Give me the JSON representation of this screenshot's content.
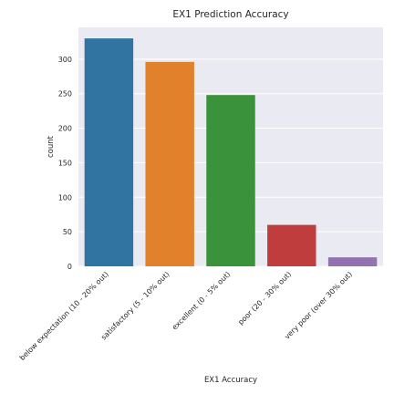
{
  "chart_data": {
    "type": "bar",
    "title": "EX1 Prediction Accuracy",
    "xlabel": "EX1 Accuracy",
    "ylabel": "count",
    "categories": [
      "below expectation (10 - 20% out)",
      "satisfactory (5 - 10% out)",
      "excellent (0 - 5% out)",
      "poor (20 - 30% out)",
      "very poor (over 30% out)"
    ],
    "values": [
      330,
      296,
      248,
      60,
      13
    ],
    "colors": [
      "#3274a1",
      "#e1812c",
      "#3a923a",
      "#c03d3e",
      "#9372b2"
    ],
    "ylim": [
      0,
      346
    ],
    "yticks": [
      0,
      50,
      100,
      150,
      200,
      250,
      300
    ],
    "grid": true,
    "background": "#eaeaf2",
    "legend": "none"
  }
}
